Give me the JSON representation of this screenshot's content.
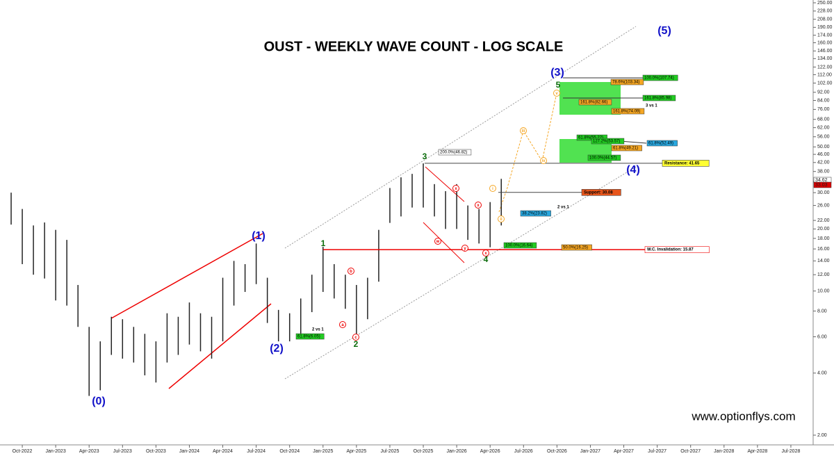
{
  "chart_data": {
    "type": "ohlc",
    "title": "OUST - WEEKLY WAVE COUNT - LOG SCALE",
    "watermark": "www.optionflys.com",
    "log_scale": true,
    "color": "#222222",
    "x": [
      "2022-09",
      "2022-10",
      "2022-11",
      "2022-12",
      "2023-01",
      "2023-02",
      "2023-03",
      "2023-04",
      "2023-05",
      "2023-06",
      "2023-07",
      "2023-08",
      "2023-09",
      "2023-10",
      "2023-11",
      "2023-12",
      "2024-01",
      "2024-02",
      "2024-03",
      "2024-04",
      "2024-05",
      "2024-06",
      "2024-07",
      "2024-08",
      "2024-09",
      "2024-10",
      "2024-11",
      "2024-12",
      "2025-01",
      "2025-02",
      "2025-03",
      "2025-04",
      "2025-05",
      "2025-06",
      "2025-07",
      "2025-08",
      "2025-09",
      "2025-10",
      "2025-11",
      "2025-12",
      "2026-01",
      "2026-02",
      "2026-03",
      "2026-04",
      "2026-05"
    ],
    "high": [
      30,
      25,
      20.8,
      21.5,
      19.8,
      17.7,
      10.7,
      6.7,
      5.7,
      7.5,
      7.3,
      6.7,
      6.2,
      5.7,
      7.8,
      7.5,
      8.8,
      7.8,
      7.5,
      11.6,
      14,
      13.5,
      17,
      11.6,
      8.1,
      7.8,
      9.2,
      12,
      16.4,
      13.5,
      12,
      10.7,
      11.6,
      19.8,
      31.6,
      35.6,
      37,
      41.6,
      33,
      30.5,
      33,
      26,
      25,
      27,
      35
    ],
    "low": [
      21,
      13.5,
      12,
      11.5,
      9,
      8.5,
      6.7,
      3.1,
      3.3,
      4.9,
      4.7,
      4.5,
      3.9,
      3.6,
      4.5,
      4.9,
      5.5,
      5.1,
      4.7,
      5.7,
      8.5,
      9.9,
      10.8,
      7,
      5.7,
      5.7,
      6.2,
      7.9,
      9.9,
      9.2,
      8.2,
      6.2,
      7.3,
      11.1,
      21.4,
      23,
      25.4,
      25.4,
      23,
      20,
      20,
      17.7,
      17,
      16.3,
      20.8
    ],
    "xlim": [
      "2022-08",
      "2028-09"
    ],
    "xticks": [
      {
        "value": "2022-10",
        "label": "Oct-2022"
      },
      {
        "value": "2023-01",
        "label": "Jan-2023"
      },
      {
        "value": "2023-04",
        "label": "Apr-2023"
      },
      {
        "value": "2023-07",
        "label": "Jul-2023"
      },
      {
        "value": "2023-10",
        "label": "Oct-2023"
      },
      {
        "value": "2024-01",
        "label": "Jan-2024"
      },
      {
        "value": "2024-04",
        "label": "Apr-2024"
      },
      {
        "value": "2024-07",
        "label": "Jul-2024"
      },
      {
        "value": "2024-10",
        "label": "Oct-2024"
      },
      {
        "value": "2025-01",
        "label": "Jan-2025"
      },
      {
        "value": "2025-04",
        "label": "Apr-2025"
      },
      {
        "value": "2025-07",
        "label": "Jul-2025"
      },
      {
        "value": "2025-10",
        "label": "Oct-2025"
      },
      {
        "value": "2026-01",
        "label": "Jan-2026"
      },
      {
        "value": "2026-04",
        "label": "Apr-2026"
      },
      {
        "value": "2026-07",
        "label": "Jul-2026"
      },
      {
        "value": "2026-10",
        "label": "Oct-2026"
      },
      {
        "value": "2027-01",
        "label": "Jan-2027"
      },
      {
        "value": "2027-04",
        "label": "Apr-2027"
      },
      {
        "value": "2027-07",
        "label": "Jul-2027"
      },
      {
        "value": "2027-10",
        "label": "Oct-2027"
      },
      {
        "value": "2028-01",
        "label": "Jan-2028"
      },
      {
        "value": "2028-04",
        "label": "Apr-2028"
      },
      {
        "value": "2028-07",
        "label": "Jul-2028"
      }
    ],
    "ylim": [
      2,
      250
    ],
    "yticks": [
      {
        "value": 2,
        "label": "2.00"
      },
      {
        "value": 4,
        "label": "4.00"
      },
      {
        "value": 6,
        "label": "6.00"
      },
      {
        "value": 8,
        "label": "8.00"
      },
      {
        "value": 10,
        "label": "10.00"
      },
      {
        "value": 12,
        "label": "12.00"
      },
      {
        "value": 14,
        "label": "14.00"
      },
      {
        "value": 16,
        "label": "16.00"
      },
      {
        "value": 18,
        "label": "18.00"
      },
      {
        "value": 20,
        "label": "20.00"
      },
      {
        "value": 22,
        "label": "22.00"
      },
      {
        "value": 26,
        "label": "26.00"
      },
      {
        "value": 30,
        "label": "30.00"
      },
      {
        "value": 34,
        "label": "34.00"
      },
      {
        "value": 38,
        "label": "38.00"
      },
      {
        "value": 42,
        "label": "42.00"
      },
      {
        "value": 46,
        "label": "46.00"
      },
      {
        "value": 50,
        "label": "50.00"
      },
      {
        "value": 56,
        "label": "56.00"
      },
      {
        "value": 62,
        "label": "62.00"
      },
      {
        "value": 68,
        "label": "68.00"
      },
      {
        "value": 76,
        "label": "76.00"
      },
      {
        "value": 84,
        "label": "84.00"
      },
      {
        "value": 92,
        "label": "92.00"
      },
      {
        "value": 102,
        "label": "102.00"
      },
      {
        "value": 112,
        "label": "112.00"
      },
      {
        "value": 122,
        "label": "122.00"
      },
      {
        "value": 134,
        "label": "134.00"
      },
      {
        "value": 146,
        "label": "146.00"
      },
      {
        "value": 160,
        "label": "160.00"
      },
      {
        "value": 174,
        "label": "174.00"
      },
      {
        "value": 190,
        "label": "190.00"
      },
      {
        "value": 208,
        "label": "208.00"
      },
      {
        "value": 228,
        "label": "228.00"
      },
      {
        "value": 250,
        "label": "250.00"
      }
    ],
    "price_tags": [
      "34.62",
      "33.03"
    ],
    "levels": [
      {
        "label": "Resistance: 41.65",
        "value": 41.65
      },
      {
        "label": "Support: 30.08",
        "value": 30.08
      },
      {
        "label": "W.C. Invalidation: 15.87",
        "value": 15.87
      }
    ],
    "wave_labels": [
      "(0)",
      "(1)",
      "(2)",
      "(3)",
      "(4)",
      "(5)",
      "1",
      "2",
      "3",
      "4",
      "5",
      "a",
      "b",
      "c",
      "w",
      "x",
      "y",
      "x",
      "x",
      "i",
      "ii",
      "iii",
      "iv",
      "v"
    ],
    "fib_labels": [
      "100.0%(107.74)",
      "78.6%(103.34)",
      "161.8%(85.98)",
      "3 vs 1",
      "161.8%(82.66)",
      "161.8%(74.09)",
      "200.0%(46.82)",
      "61.8%(55.22)",
      "127.2%(53.57)",
      "61.8%(52.49)",
      "61.8%(49.21)",
      "100.0%(44.57)",
      "2 vs 1",
      "38.2%(23.82)",
      "100.0%(16.64)",
      "50.0%(16.25)",
      "2 vs 1",
      "61.8%(6.05)"
    ]
  }
}
